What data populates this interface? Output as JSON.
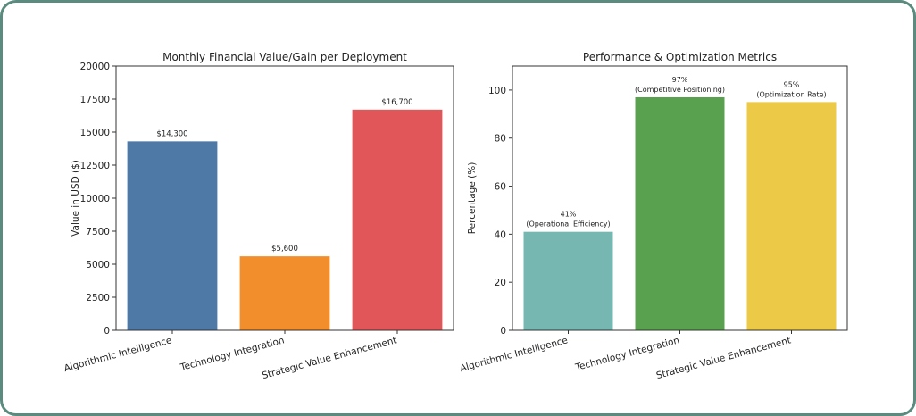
{
  "chart_data": [
    {
      "type": "bar",
      "title": "Monthly Financial Value/Gain per Deployment",
      "xlabel": "",
      "ylabel": "Value in USD ($)",
      "categories": [
        "Algorithmic Intelligence",
        "Technology Integration",
        "Strategic Value Enhancement"
      ],
      "values": [
        14300,
        5600,
        16700
      ],
      "data_labels": [
        "$14,300",
        "$5,600",
        "$16,700"
      ],
      "colors": [
        "#4e79a7",
        "#f28e2b",
        "#e15759"
      ],
      "ylim": [
        0,
        20000
      ],
      "yticks": [
        0,
        2500,
        5000,
        7500,
        10000,
        12500,
        15000,
        17500,
        20000
      ],
      "grid": false
    },
    {
      "type": "bar",
      "title": "Performance & Optimization Metrics",
      "xlabel": "",
      "ylabel": "Percentage (%)",
      "categories": [
        "Algorithmic Intelligence",
        "Technology Integration",
        "Strategic Value Enhancement"
      ],
      "values": [
        41,
        97,
        95
      ],
      "data_labels": [
        [
          "41%",
          "(Operational Efficiency)"
        ],
        [
          "97%",
          "(Competitive Positioning)"
        ],
        [
          "95%",
          "(Optimization Rate)"
        ]
      ],
      "colors": [
        "#76b7b2",
        "#59a14f",
        "#edc948"
      ],
      "ylim": [
        0,
        110
      ],
      "yticks": [
        0,
        20,
        40,
        60,
        80,
        100
      ],
      "grid": false
    }
  ]
}
